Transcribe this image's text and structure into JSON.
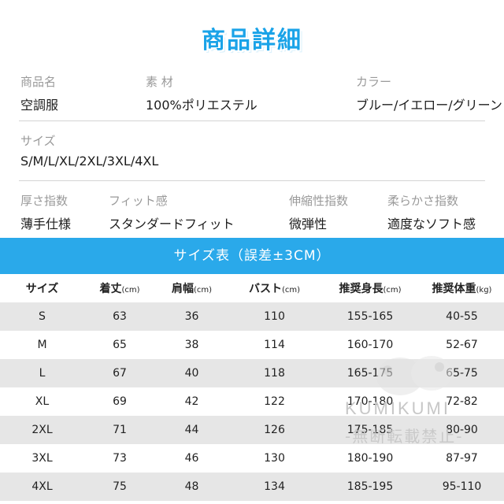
{
  "header": {
    "title": "商品詳細"
  },
  "specs": {
    "name_label": "商品名",
    "name_value": "空調服",
    "material_label": "素 材",
    "material_value": "100%ポリエステル",
    "color_label": "カラー",
    "color_value": "ブルー/イエロー/グリーン",
    "size_label": "サイズ",
    "size_value": "S/M/L/XL/2XL/3XL/4XL",
    "thickness_label": "厚さ指数",
    "thickness_value": "薄手仕様",
    "fit_label": "フィット感",
    "fit_value": "スタンダードフィット",
    "stretch_label": "伸縮性指数",
    "stretch_value": "微弾性",
    "softness_label": "柔らかさ指数",
    "softness_value": "適度なソフト感"
  },
  "size_table": {
    "banner": "サイズ表（誤差±3CM）",
    "headers": [
      {
        "label": "サイズ",
        "unit": ""
      },
      {
        "label": "着丈",
        "unit": "(cm)"
      },
      {
        "label": "肩幅",
        "unit": "(cm)"
      },
      {
        "label": "バスト",
        "unit": "(cm)"
      },
      {
        "label": "推奨身長",
        "unit": "(cm)"
      },
      {
        "label": "推奨体重",
        "unit": "(kg)"
      }
    ],
    "rows": [
      [
        "S",
        "63",
        "36",
        "110",
        "155-165",
        "40-55"
      ],
      [
        "M",
        "65",
        "38",
        "114",
        "160-170",
        "52-67"
      ],
      [
        "L",
        "67",
        "40",
        "118",
        "165-175",
        "65-75"
      ],
      [
        "XL",
        "69",
        "42",
        "122",
        "170-180",
        "72-82"
      ],
      [
        "2XL",
        "71",
        "44",
        "126",
        "175-185",
        "80-90"
      ],
      [
        "3XL",
        "73",
        "46",
        "130",
        "180-190",
        "87-97"
      ],
      [
        "4XL",
        "75",
        "48",
        "134",
        "185-195",
        "95-110"
      ]
    ]
  },
  "watermark": {
    "brand": "KUMIKUMI",
    "notice": "-無断転載禁止-"
  },
  "colors": {
    "accent": "#2aa9ea",
    "title": "#1aa3e8",
    "row_shade": "#e6e6e6",
    "label": "#9a9a9a"
  }
}
